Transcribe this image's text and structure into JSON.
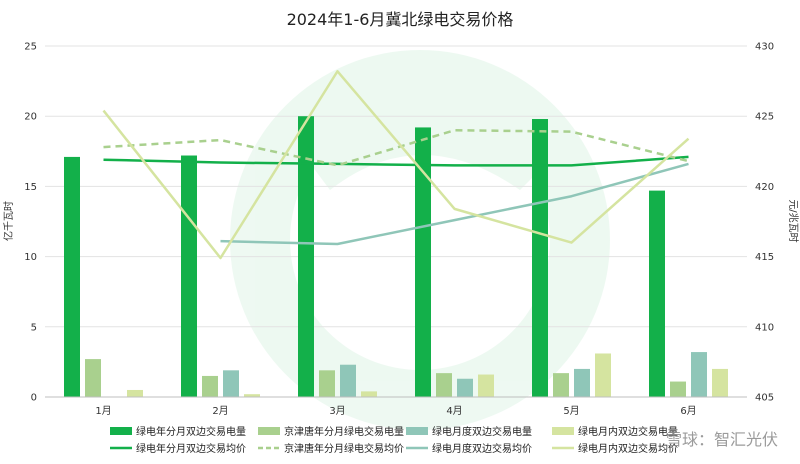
{
  "chart_data": {
    "type": "bar",
    "title": "2024年1-6月冀北绿电交易价格",
    "categories": [
      "1月",
      "2月",
      "3月",
      "4月",
      "5月",
      "6月"
    ],
    "y_left": {
      "label": "亿千瓦时",
      "min": 0,
      "max": 25,
      "ticks": [
        0,
        5,
        10,
        15,
        20,
        25
      ]
    },
    "y_right": {
      "label": "元/兆瓦时",
      "min": 405,
      "max": 430,
      "ticks": [
        405,
        410,
        415,
        420,
        425,
        430
      ]
    },
    "grid": true,
    "legend_position": "bottom",
    "bar_series": [
      {
        "name": "绿电年分月双边交易电量",
        "color": "#13b04a",
        "values": [
          17.1,
          17.2,
          20.0,
          19.2,
          19.8,
          14.7
        ]
      },
      {
        "name": "京津唐年分月绿电交易电量",
        "color": "#a9d08e",
        "values": [
          2.7,
          1.5,
          1.9,
          1.7,
          1.7,
          1.1
        ]
      },
      {
        "name": "绿电月度双边交易电量",
        "color": "#8fc6b8",
        "values": [
          null,
          1.9,
          2.3,
          1.3,
          2.0,
          3.2
        ]
      },
      {
        "name": "绿电月内双边交易电量",
        "color": "#d5e4a0",
        "values": [
          0.5,
          0.2,
          0.4,
          1.6,
          3.1,
          2.0
        ]
      }
    ],
    "line_series": [
      {
        "name": "绿电年分月双边交易均价",
        "color": "#13b04a",
        "dash": "solid",
        "values": [
          421.9,
          421.7,
          421.6,
          421.5,
          421.5,
          422.1
        ]
      },
      {
        "name": "京津唐年分月绿电交易均价",
        "color": "#a9d08e",
        "dash": "dashed",
        "values": [
          422.8,
          423.3,
          421.5,
          424.0,
          423.9,
          421.8
        ]
      },
      {
        "name": "绿电月度双边交易均价",
        "color": "#8fc6b8",
        "dash": "solid",
        "values": [
          null,
          416.1,
          415.9,
          417.6,
          419.3,
          421.6
        ]
      },
      {
        "name": "绿电月内双边交易均价",
        "color": "#d5e4a0",
        "dash": "solid",
        "values": [
          425.4,
          414.9,
          428.2,
          418.4,
          416.0,
          423.4
        ]
      }
    ]
  },
  "watermark": {
    "text": "雪球：智汇光伏"
  }
}
